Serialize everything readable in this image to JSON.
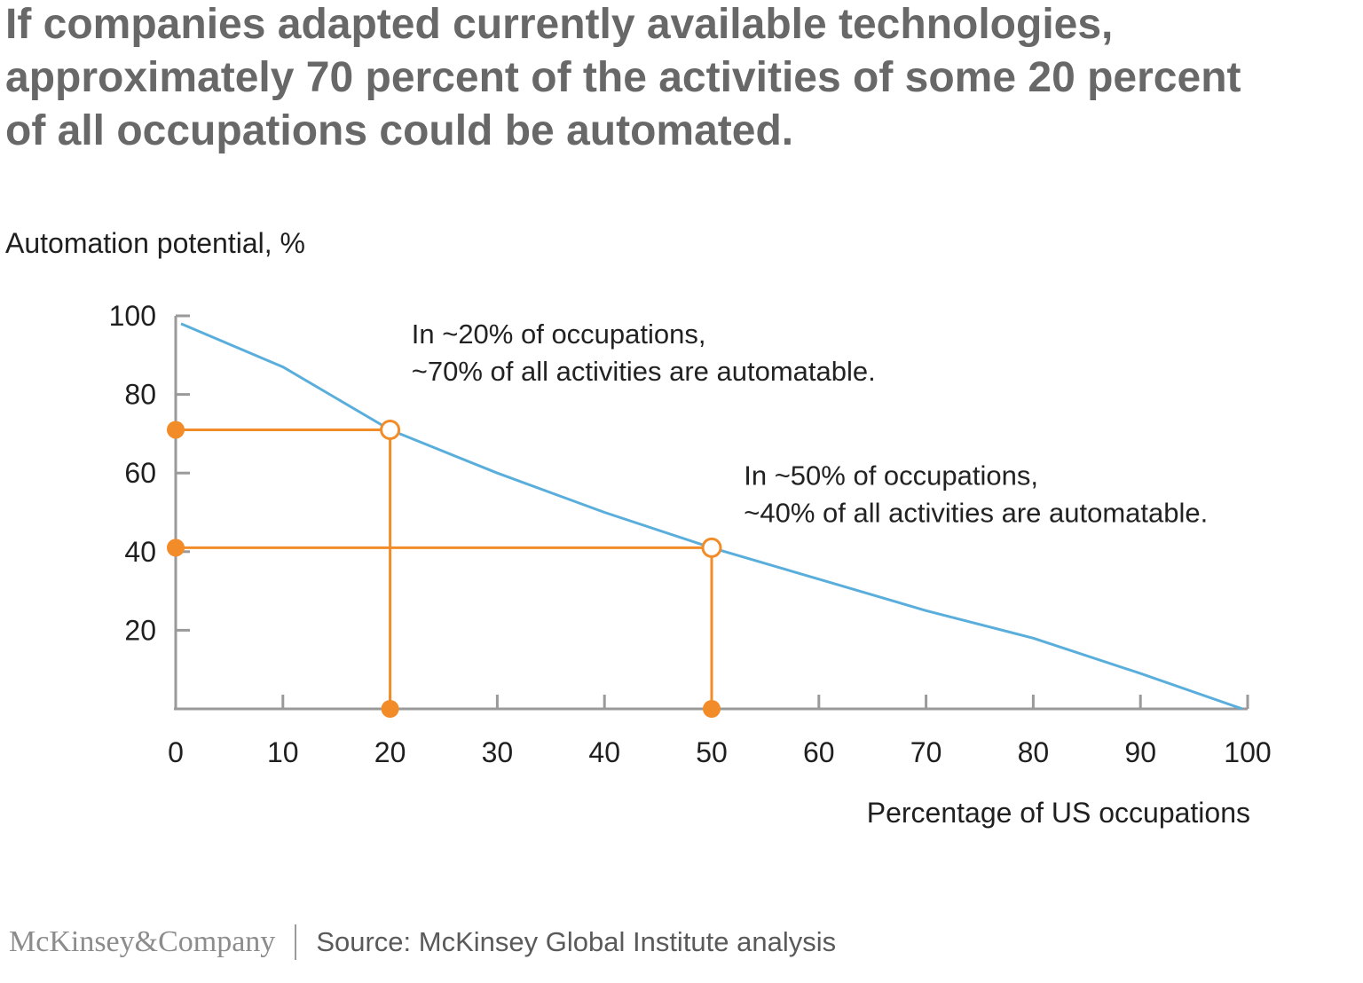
{
  "headline": "If companies adapted currently available technologies, approximately 70 percent of the activities of some 20 percent of all occupations could be automated.",
  "colors": {
    "line": "#5aaedc",
    "highlight": "#f28c28",
    "axis": "#9a9a9a",
    "headline": "#686868"
  },
  "chart_data": {
    "type": "line",
    "ylabel": "Automation potential, %",
    "xlabel": "Percentage of US occupations",
    "xlim": [
      0,
      100
    ],
    "ylim": [
      0,
      100
    ],
    "x_ticks": [
      0,
      10,
      20,
      30,
      40,
      50,
      60,
      70,
      80,
      90,
      100
    ],
    "y_ticks": [
      20,
      40,
      60,
      80,
      100
    ],
    "grid": false,
    "series": [
      {
        "name": "Automation potential",
        "x": [
          0.5,
          10,
          20,
          30,
          40,
          50,
          60,
          70,
          80,
          90,
          99.5
        ],
        "y": [
          98,
          87,
          71,
          60,
          50,
          41,
          33,
          25,
          18,
          9,
          0
        ]
      }
    ],
    "highlights": [
      {
        "x": 20,
        "y": 71
      },
      {
        "x": 50,
        "y": 41
      }
    ],
    "annotations": [
      {
        "lines": [
          "In ~20% of occupations,",
          "~70% of all activities are automatable."
        ],
        "x": 22,
        "y": 93
      },
      {
        "lines": [
          "In ~50% of occupations,",
          "~40% of all activities are automatable."
        ],
        "x": 53,
        "y": 57
      }
    ]
  },
  "footer": {
    "brand": "McKinsey&Company",
    "source": "Source: McKinsey Global Institute analysis"
  }
}
